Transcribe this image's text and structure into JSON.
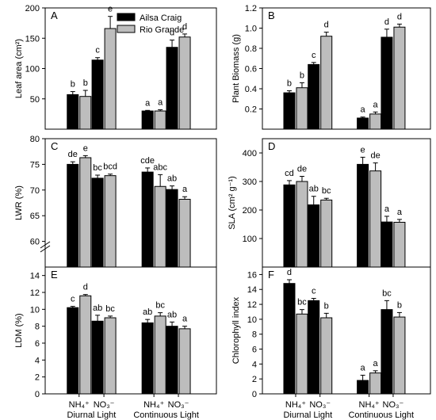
{
  "legend": [
    {
      "name": "Ailsa Craig",
      "color": "#000000"
    },
    {
      "name": "Rio Grande",
      "color": "#bdbdbd"
    }
  ],
  "x_groups": [
    {
      "sub": "NH₄⁺",
      "light": "Diurnal Light"
    },
    {
      "sub": "NO₃⁻",
      "light": "Diurnal Light"
    },
    {
      "sub": "NH₄⁺",
      "light": "Continuous Light"
    },
    {
      "sub": "NO₃⁻",
      "light": "Continuous Light"
    }
  ],
  "x_labels": {
    "g1": "Diurnal Light",
    "g2": "Continuous Light"
  },
  "chart_data": [
    {
      "panel": "A",
      "type": "bar",
      "ylabel": "Leaf area (cm²)",
      "ylim": [
        0,
        200
      ],
      "yticks": [
        50,
        100,
        150,
        200
      ],
      "categories": [
        "NH4+ Diurnal",
        "NO3- Diurnal",
        "NH4+ Continuous",
        "NO3- Continuous"
      ],
      "series": [
        {
          "name": "Ailsa Craig",
          "values": [
            57,
            114,
            30,
            135
          ],
          "errors": [
            5,
            4,
            1,
            12
          ],
          "letters": [
            "b",
            "c",
            "a",
            "d"
          ]
        },
        {
          "name": "Rio Grande",
          "values": [
            54,
            166,
            30,
            152
          ],
          "errors": [
            10,
            20,
            2,
            5
          ],
          "letters": [
            "b",
            "e",
            "a",
            "d"
          ]
        }
      ]
    },
    {
      "panel": "B",
      "type": "bar",
      "ylabel": "Plant Biomass (g)",
      "ylim": [
        0,
        1.2
      ],
      "yticks": [
        0.2,
        0.4,
        0.6,
        0.8,
        1.0,
        1.2
      ],
      "categories": [
        "NH4+ Diurnal",
        "NO3- Diurnal",
        "NH4+ Continuous",
        "NO3- Continuous"
      ],
      "series": [
        {
          "name": "Ailsa Craig",
          "values": [
            0.36,
            0.64,
            0.11,
            0.91
          ],
          "errors": [
            0.02,
            0.02,
            0.01,
            0.08
          ],
          "letters": [
            "b",
            "c",
            "a",
            "d"
          ]
        },
        {
          "name": "Rio Grande",
          "values": [
            0.41,
            0.92,
            0.15,
            1.01
          ],
          "errors": [
            0.05,
            0.04,
            0.02,
            0.03
          ],
          "letters": [
            "b",
            "d",
            "a",
            "d"
          ]
        }
      ]
    },
    {
      "panel": "C",
      "type": "bar",
      "ylabel": "LWR (%)",
      "ylim": [
        55,
        80
      ],
      "yticks": [
        60,
        65,
        70,
        75,
        80
      ],
      "axis_break": true,
      "categories": [
        "NH4+ Diurnal",
        "NO3- Diurnal",
        "NH4+ Continuous",
        "NO3- Continuous"
      ],
      "series": [
        {
          "name": "Ailsa Craig",
          "values": [
            75.0,
            72.3,
            73.5,
            70.1
          ],
          "errors": [
            0.5,
            0.6,
            0.8,
            0.7
          ],
          "letters": [
            "de",
            "bc",
            "cde",
            "ab"
          ]
        },
        {
          "name": "Rio Grande",
          "values": [
            76.3,
            72.8,
            70.7,
            68.2
          ],
          "errors": [
            0.4,
            0.3,
            2.3,
            0.5
          ],
          "letters": [
            "e",
            "bcd",
            "abc",
            "a"
          ]
        }
      ]
    },
    {
      "panel": "D",
      "type": "bar",
      "ylabel": "SLA (cm² g⁻¹)",
      "ylim": [
        0,
        450
      ],
      "yticks": [
        100,
        200,
        300,
        400
      ],
      "categories": [
        "NH4+ Diurnal",
        "NO3- Diurnal",
        "NH4+ Continuous",
        "NO3- Continuous"
      ],
      "series": [
        {
          "name": "Ailsa Craig",
          "values": [
            288,
            218,
            360,
            158
          ],
          "errors": [
            15,
            30,
            25,
            20
          ],
          "letters": [
            "cd",
            "ab",
            "e",
            "a"
          ]
        },
        {
          "name": "Rio Grande",
          "values": [
            300,
            235,
            337,
            157
          ],
          "errors": [
            18,
            6,
            28,
            10
          ],
          "letters": [
            "de",
            "bc",
            "de",
            "a"
          ]
        }
      ]
    },
    {
      "panel": "E",
      "type": "bar",
      "ylabel": "LDM (%)",
      "ylim": [
        0,
        15
      ],
      "yticks": [
        0,
        2,
        4,
        6,
        8,
        10,
        12,
        14
      ],
      "categories": [
        "NH4+ Diurnal",
        "NO3- Diurnal",
        "NH4+ Continuous",
        "NO3- Continuous"
      ],
      "series": [
        {
          "name": "Ailsa Craig",
          "values": [
            10.2,
            8.6,
            8.4,
            8.0
          ],
          "errors": [
            0.15,
            0.7,
            0.4,
            0.5
          ],
          "letters": [
            "c",
            "ab",
            "ab",
            "ab"
          ]
        },
        {
          "name": "Rio Grande",
          "values": [
            11.6,
            9.0,
            9.2,
            7.7
          ],
          "errors": [
            0.15,
            0.2,
            0.4,
            0.3
          ],
          "letters": [
            "d",
            "bc",
            "bc",
            "a"
          ]
        }
      ]
    },
    {
      "panel": "F",
      "type": "bar",
      "ylabel": "Chlorophyll index",
      "ylim": [
        0,
        17
      ],
      "yticks": [
        0,
        2,
        4,
        6,
        8,
        10,
        12,
        14,
        16
      ],
      "categories": [
        "NH4+ Diurnal",
        "NO3- Diurnal",
        "NH4+ Continuous",
        "NO3- Continuous"
      ],
      "series": [
        {
          "name": "Ailsa Craig",
          "values": [
            14.8,
            12.5,
            1.8,
            11.3
          ],
          "errors": [
            0.5,
            0.3,
            0.7,
            1.2
          ],
          "letters": [
            "d",
            "c",
            "a",
            "bc"
          ]
        },
        {
          "name": "Rio Grande",
          "values": [
            10.7,
            10.2,
            2.8,
            10.3
          ],
          "errors": [
            0.6,
            0.6,
            0.3,
            0.6
          ],
          "letters": [
            "bc",
            "b",
            "a",
            "b"
          ]
        }
      ]
    }
  ]
}
